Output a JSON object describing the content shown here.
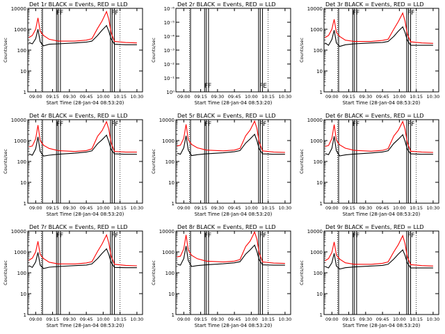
{
  "figure": {
    "x_tick_labels": [
      "09:00",
      "09:15",
      "09:30",
      "09:45",
      "10:00",
      "10:15",
      "10:30"
    ],
    "xlabel": "Start Time (28-Jan-04 08:53:20)",
    "ylabel": "Counts/sec",
    "colors": {
      "events": "#000000",
      "lld": "#ff0000",
      "axes": "#000000",
      "background": "#ffffff"
    }
  },
  "chart_data": [
    {
      "type": "line",
      "title": "Det 1r BLACK = Events, RED = LLD",
      "scale": "log",
      "ylim": [
        1,
        10000
      ],
      "y_tick_labels": [
        "1",
        "10",
        "100",
        "1000",
        "10000"
      ],
      "flags": [
        {
          "text": "FF",
          "x": "09:17"
        },
        {
          "text": "FF",
          "x": "10:06"
        }
      ],
      "series": [
        {
          "color": "#000000",
          "x": [
            "08:54",
            "08:57",
            "09:00",
            "09:02",
            "09:04",
            "09:07",
            "09:12",
            "09:20",
            "09:35",
            "09:45",
            "09:50",
            "09:55",
            "09:59",
            "10:03",
            "10:05",
            "10:07",
            "10:10",
            "10:20",
            "10:30"
          ],
          "values": [
            230,
            200,
            350,
            1000,
            250,
            160,
            190,
            200,
            220,
            240,
            270,
            500,
            900,
            1500,
            800,
            350,
            190,
            180,
            180
          ]
        },
        {
          "color": "#ff0000",
          "x": [
            "08:54",
            "08:57",
            "09:00",
            "09:02",
            "09:04",
            "09:07",
            "09:12",
            "09:20",
            "09:35",
            "09:45",
            "09:50",
            "09:55",
            "09:59",
            "10:03",
            "10:05",
            "10:07",
            "10:10",
            "10:20",
            "10:30"
          ],
          "values": [
            400,
            500,
            1000,
            3500,
            800,
            500,
            330,
            270,
            270,
            300,
            350,
            1100,
            2500,
            7000,
            3000,
            700,
            260,
            230,
            220
          ]
        }
      ]
    },
    {
      "type": "line",
      "title": "Det 2r BLACK = Events, RED = LLD",
      "scale": "log",
      "ylim": [
        1,
        1e-06
      ],
      "y_tick_labels": [
        "10⁻⁶",
        "10⁻⁵",
        "10⁻⁴",
        "10⁻³",
        "10⁻²",
        "10⁻¹",
        "10⁰"
      ],
      "flags": [
        {
          "text": "FF",
          "x": "09:17"
        },
        {
          "text": "FE",
          "x": "10:06"
        }
      ],
      "series": []
    },
    {
      "type": "line",
      "title": "Det 3r BLACK = Events, RED = LLD",
      "scale": "log",
      "ylim": [
        1,
        10000
      ],
      "y_tick_labels": [
        "1",
        "10",
        "100",
        "1000",
        "10000"
      ],
      "flags": [
        {
          "text": "FF",
          "x": "09:17"
        },
        {
          "text": "FF",
          "x": "10:06"
        }
      ],
      "series": [
        {
          "color": "#000000",
          "x": [
            "08:54",
            "08:57",
            "09:00",
            "09:02",
            "09:04",
            "09:07",
            "09:12",
            "09:20",
            "09:35",
            "09:45",
            "09:50",
            "09:55",
            "09:59",
            "10:03",
            "10:05",
            "10:07",
            "10:10",
            "10:20",
            "10:30"
          ],
          "values": [
            220,
            170,
            320,
            900,
            220,
            150,
            180,
            200,
            220,
            230,
            260,
            450,
            800,
            1300,
            700,
            300,
            170,
            170,
            170
          ]
        },
        {
          "color": "#ff0000",
          "x": [
            "08:54",
            "08:57",
            "09:00",
            "09:02",
            "09:04",
            "09:07",
            "09:12",
            "09:20",
            "09:35",
            "09:45",
            "09:50",
            "09:55",
            "09:59",
            "10:03",
            "10:05",
            "10:07",
            "10:10",
            "10:20",
            "10:30"
          ],
          "values": [
            400,
            500,
            1000,
            3000,
            700,
            450,
            300,
            260,
            260,
            290,
            330,
            1000,
            2300,
            6000,
            2500,
            600,
            250,
            220,
            210
          ]
        }
      ]
    },
    {
      "type": "line",
      "title": "Det 4r BLACK = Events, RED = LLD",
      "scale": "log",
      "ylim": [
        1,
        10000
      ],
      "y_tick_labels": [
        "1",
        "10",
        "100",
        "1000",
        "10000"
      ],
      "flags": [
        {
          "text": "FF",
          "x": "09:17"
        },
        {
          "text": "FF",
          "x": "10:06"
        }
      ],
      "series": [
        {
          "color": "#000000",
          "x": [
            "08:54",
            "08:57",
            "09:00",
            "09:02",
            "09:04",
            "09:07",
            "09:12",
            "09:20",
            "09:35",
            "09:45",
            "09:50",
            "09:55",
            "09:59",
            "10:03",
            "10:05",
            "10:07",
            "10:10",
            "10:20",
            "10:30"
          ],
          "values": [
            230,
            200,
            400,
            1500,
            300,
            180,
            200,
            220,
            250,
            280,
            320,
            700,
            1100,
            1800,
            900,
            380,
            230,
            220,
            220
          ]
        },
        {
          "color": "#ff0000",
          "x": [
            "08:54",
            "08:57",
            "09:00",
            "09:02",
            "09:04",
            "09:07",
            "09:12",
            "09:20",
            "09:35",
            "09:45",
            "09:50",
            "09:55",
            "09:59",
            "10:03",
            "10:05",
            "10:07",
            "10:10",
            "10:20",
            "10:30"
          ],
          "values": [
            500,
            550,
            1200,
            5500,
            1000,
            600,
            420,
            330,
            300,
            330,
            400,
            1600,
            3000,
            8000,
            3500,
            800,
            300,
            280,
            280
          ]
        }
      ]
    },
    {
      "type": "line",
      "title": "Det 5r BLACK = Events, RED = LLD",
      "scale": "log",
      "ylim": [
        1,
        10000
      ],
      "y_tick_labels": [
        "1",
        "10",
        "100",
        "1000",
        "10000"
      ],
      "flags": [
        {
          "text": "FF",
          "x": "09:17"
        },
        {
          "text": "FF",
          "x": "10:06"
        }
      ],
      "series": [
        {
          "color": "#000000",
          "x": [
            "08:54",
            "08:57",
            "09:00",
            "09:02",
            "09:04",
            "09:07",
            "09:12",
            "09:20",
            "09:35",
            "09:45",
            "09:50",
            "09:55",
            "09:59",
            "10:03",
            "10:05",
            "10:07",
            "10:10",
            "10:20",
            "10:30"
          ],
          "values": [
            250,
            220,
            450,
            1700,
            350,
            190,
            210,
            230,
            260,
            290,
            330,
            750,
            1200,
            2000,
            1000,
            400,
            230,
            220,
            220
          ]
        },
        {
          "color": "#ff0000",
          "x": [
            "08:54",
            "08:57",
            "09:00",
            "09:02",
            "09:04",
            "09:07",
            "09:12",
            "09:20",
            "09:35",
            "09:45",
            "09:50",
            "09:55",
            "09:59",
            "10:03",
            "10:05",
            "10:07",
            "10:10",
            "10:20",
            "10:30"
          ],
          "values": [
            550,
            600,
            1300,
            6000,
            1100,
            650,
            450,
            350,
            320,
            350,
            420,
            1700,
            3200,
            8500,
            3800,
            850,
            320,
            280,
            270
          ]
        }
      ]
    },
    {
      "type": "line",
      "title": "Det 6r BLACK = Events, RED = LLD",
      "scale": "log",
      "ylim": [
        1,
        10000
      ],
      "y_tick_labels": [
        "1",
        "10",
        "100",
        "1000",
        "10000"
      ],
      "flags": [
        {
          "text": "FF",
          "x": "09:17"
        },
        {
          "text": "FF",
          "x": "10:06"
        }
      ],
      "series": [
        {
          "color": "#000000",
          "x": [
            "08:54",
            "08:57",
            "09:00",
            "09:02",
            "09:04",
            "09:07",
            "09:12",
            "09:20",
            "09:35",
            "09:45",
            "09:50",
            "09:55",
            "09:59",
            "10:03",
            "10:05",
            "10:07",
            "10:10",
            "10:20",
            "10:30"
          ],
          "values": [
            240,
            210,
            420,
            1600,
            320,
            185,
            205,
            225,
            255,
            285,
            325,
            720,
            1150,
            1900,
            950,
            390,
            230,
            220,
            220
          ]
        },
        {
          "color": "#ff0000",
          "x": [
            "08:54",
            "08:57",
            "09:00",
            "09:02",
            "09:04",
            "09:07",
            "09:12",
            "09:20",
            "09:35",
            "09:45",
            "09:50",
            "09:55",
            "09:59",
            "10:03",
            "10:05",
            "10:07",
            "10:10",
            "10:20",
            "10:30"
          ],
          "values": [
            520,
            580,
            1250,
            5800,
            1050,
            620,
            430,
            340,
            310,
            340,
            410,
            1650,
            3100,
            8200,
            3600,
            820,
            310,
            280,
            270
          ]
        }
      ]
    },
    {
      "type": "line",
      "title": "Det 7r BLACK = Events, RED = LLD",
      "scale": "log",
      "ylim": [
        1,
        10000
      ],
      "y_tick_labels": [
        "1",
        "10",
        "100",
        "1000",
        "10000"
      ],
      "flags": [
        {
          "text": "FF",
          "x": "09:17"
        },
        {
          "text": "FF",
          "x": "10:06"
        }
      ],
      "series": [
        {
          "color": "#000000",
          "x": [
            "08:54",
            "08:57",
            "09:00",
            "09:02",
            "09:04",
            "09:07",
            "09:12",
            "09:20",
            "09:35",
            "09:45",
            "09:50",
            "09:55",
            "09:59",
            "10:03",
            "10:05",
            "10:07",
            "10:10",
            "10:20",
            "10:30"
          ],
          "values": [
            220,
            180,
            330,
            950,
            230,
            160,
            185,
            200,
            220,
            235,
            265,
            480,
            850,
            1400,
            750,
            320,
            180,
            175,
            175
          ]
        },
        {
          "color": "#ff0000",
          "x": [
            "08:54",
            "08:57",
            "09:00",
            "09:02",
            "09:04",
            "09:07",
            "09:12",
            "09:20",
            "09:35",
            "09:45",
            "09:50",
            "09:55",
            "09:59",
            "10:03",
            "10:05",
            "10:07",
            "10:10",
            "10:20",
            "10:30"
          ],
          "values": [
            400,
            500,
            1000,
            3200,
            750,
            480,
            320,
            265,
            265,
            295,
            340,
            1050,
            2400,
            6500,
            2700,
            650,
            255,
            225,
            215
          ]
        }
      ]
    },
    {
      "type": "line",
      "title": "Det 8r BLACK = Events, RED = LLD",
      "scale": "log",
      "ylim": [
        1,
        10000
      ],
      "y_tick_labels": [
        "1",
        "10",
        "100",
        "1000",
        "10000"
      ],
      "flags": [
        {
          "text": "FF",
          "x": "09:17"
        },
        {
          "text": "FF",
          "x": "10:06"
        }
      ],
      "series": [
        {
          "color": "#000000",
          "x": [
            "08:54",
            "08:57",
            "09:00",
            "09:02",
            "09:04",
            "09:07",
            "09:12",
            "09:20",
            "09:35",
            "09:45",
            "09:50",
            "09:55",
            "09:59",
            "10:03",
            "10:05",
            "10:07",
            "10:10",
            "10:20",
            "10:30"
          ],
          "values": [
            260,
            230,
            480,
            1900,
            380,
            200,
            220,
            240,
            270,
            300,
            340,
            780,
            1250,
            2100,
            1050,
            420,
            240,
            230,
            230
          ]
        },
        {
          "color": "#ff0000",
          "x": [
            "08:54",
            "08:57",
            "09:00",
            "09:02",
            "09:04",
            "09:07",
            "09:12",
            "09:20",
            "09:35",
            "09:45",
            "09:50",
            "09:55",
            "09:59",
            "10:03",
            "10:05",
            "10:07",
            "10:10",
            "10:20",
            "10:30"
          ],
          "values": [
            580,
            620,
            1400,
            6500,
            1200,
            680,
            470,
            360,
            330,
            360,
            430,
            1800,
            3300,
            9000,
            4000,
            900,
            330,
            290,
            280
          ]
        }
      ]
    },
    {
      "type": "line",
      "title": "Det 9r BLACK = Events, RED = LLD",
      "scale": "log",
      "ylim": [
        1,
        10000
      ],
      "y_tick_labels": [
        "1",
        "10",
        "100",
        "1000",
        "10000"
      ],
      "flags": [
        {
          "text": "FF",
          "x": "09:17"
        },
        {
          "text": "FF",
          "x": "10:06"
        }
      ],
      "series": [
        {
          "color": "#000000",
          "x": [
            "08:54",
            "08:57",
            "09:00",
            "09:02",
            "09:04",
            "09:07",
            "09:12",
            "09:20",
            "09:35",
            "09:45",
            "09:50",
            "09:55",
            "09:59",
            "10:03",
            "10:05",
            "10:07",
            "10:10",
            "10:20",
            "10:30"
          ],
          "values": [
            200,
            170,
            300,
            850,
            210,
            150,
            175,
            190,
            210,
            225,
            255,
            450,
            780,
            1250,
            680,
            300,
            170,
            170,
            170
          ]
        },
        {
          "color": "#ff0000",
          "x": [
            "08:54",
            "08:57",
            "09:00",
            "09:02",
            "09:04",
            "09:07",
            "09:12",
            "09:20",
            "09:35",
            "09:45",
            "09:50",
            "09:55",
            "09:59",
            "10:03",
            "10:05",
            "10:07",
            "10:10",
            "10:20",
            "10:30"
          ],
          "values": [
            380,
            480,
            950,
            3000,
            700,
            450,
            300,
            255,
            255,
            285,
            330,
            1000,
            2200,
            6000,
            2500,
            600,
            245,
            220,
            210
          ]
        }
      ]
    }
  ]
}
